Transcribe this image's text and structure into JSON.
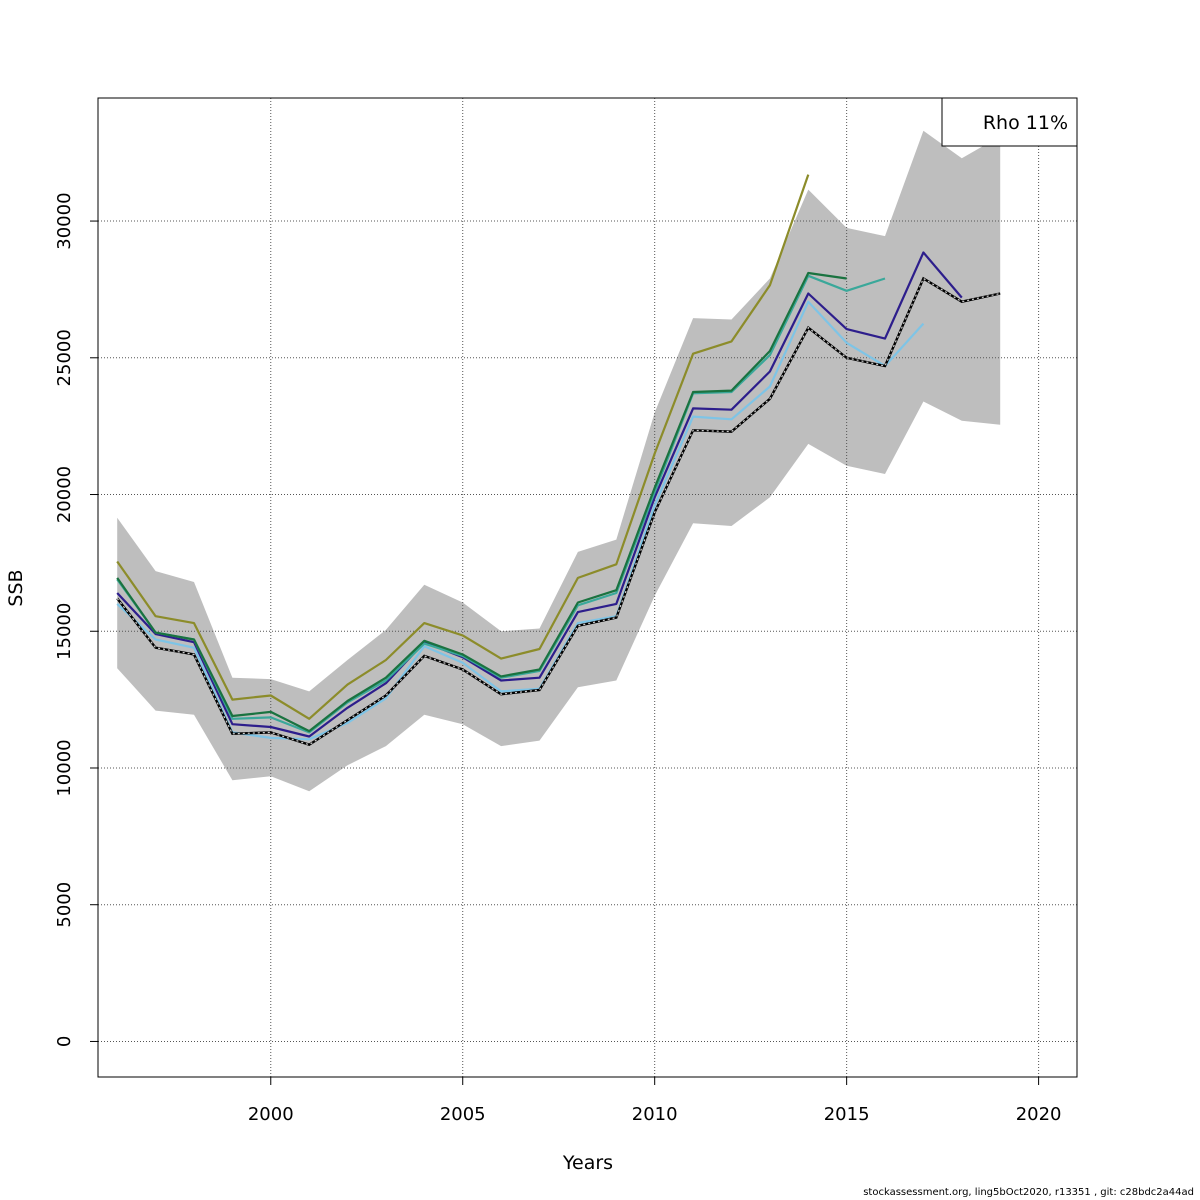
{
  "chart_data": {
    "type": "line",
    "xlabel": "Years",
    "ylabel": "SSB",
    "xlim": [
      1995.5,
      2021.0
    ],
    "ylim": [
      -1300,
      34500
    ],
    "x_ticks": [
      2000,
      2005,
      2010,
      2015,
      2020
    ],
    "y_ticks": [
      0,
      5000,
      10000,
      15000,
      20000,
      25000,
      30000
    ],
    "grid": true,
    "legend": {
      "position": "top-right",
      "text": "Rho 11%"
    },
    "confidence_band": {
      "x": [
        1996,
        1997,
        1998,
        1999,
        2000,
        2001,
        2002,
        2003,
        2004,
        2005,
        2006,
        2007,
        2008,
        2009,
        2010,
        2011,
        2012,
        2013,
        2014,
        2015,
        2016,
        2017,
        2018,
        2019
      ],
      "upper": [
        19150,
        17200,
        16800,
        13300,
        13250,
        12800,
        13950,
        15050,
        16700,
        16050,
        15000,
        15100,
        17900,
        18350,
        23000,
        26450,
        26400,
        27900,
        31150,
        29750,
        29450,
        33300,
        32300,
        33100
      ],
      "lower": [
        13650,
        12100,
        11950,
        9550,
        9700,
        9150,
        10100,
        10800,
        11950,
        11600,
        10800,
        11000,
        12950,
        13200,
        16300,
        18950,
        18850,
        19900,
        21850,
        21050,
        20750,
        23400,
        22700,
        22550
      ]
    },
    "series": [
      {
        "color": "#000000",
        "dashed": true,
        "x": [
          1996,
          1997,
          1998,
          1999,
          2000,
          2001,
          2002,
          2003,
          2004,
          2005,
          2006,
          2007,
          2008,
          2009,
          2010,
          2011,
          2012,
          2013,
          2014,
          2015,
          2016,
          2017,
          2018,
          2019
        ],
        "values": [
          16200,
          14400,
          14150,
          11250,
          11300,
          10850,
          11750,
          12650,
          14100,
          13600,
          12700,
          12850,
          15200,
          15500,
          19350,
          22350,
          22300,
          23500,
          26100,
          25000,
          24700,
          27900,
          27050,
          27350
        ]
      },
      {
        "color": "#2d1e8c",
        "x": [
          1996,
          1997,
          1998,
          1999,
          2000,
          2001,
          2002,
          2003,
          2004,
          2005,
          2006,
          2007,
          2008,
          2009,
          2010,
          2011,
          2012,
          2013,
          2014,
          2015,
          2016,
          2017,
          2018
        ],
        "values": [
          16400,
          14900,
          14600,
          11600,
          11500,
          11150,
          12200,
          13100,
          14600,
          14050,
          13200,
          13300,
          15700,
          16000,
          19900,
          23150,
          23100,
          24500,
          27350,
          26050,
          25700,
          28850,
          27200
        ]
      },
      {
        "color": "#7ec4e6",
        "x": [
          1996,
          1997,
          1998,
          1999,
          2000,
          2001,
          2002,
          2003,
          2004,
          2005,
          2006,
          2007,
          2008,
          2009,
          2010,
          2011,
          2012,
          2013,
          2014,
          2015,
          2016,
          2017
        ],
        "values": [
          16000,
          14700,
          14400,
          11300,
          11100,
          11050,
          11650,
          12550,
          14450,
          13850,
          12800,
          12900,
          15300,
          15550,
          19600,
          22850,
          22750,
          23950,
          27050,
          25550,
          24700,
          26250
        ]
      },
      {
        "color": "#3aa89a",
        "x": [
          1996,
          1997,
          1998,
          1999,
          2000,
          2001,
          2002,
          2003,
          2004,
          2005,
          2006,
          2007,
          2008,
          2009,
          2010,
          2011,
          2012,
          2013,
          2014,
          2015,
          2016
        ],
        "values": [
          16900,
          14950,
          14700,
          11800,
          11850,
          11300,
          12400,
          13200,
          14550,
          14100,
          13300,
          13550,
          15950,
          16400,
          20100,
          23700,
          23750,
          25100,
          28000,
          27450,
          27900
        ]
      },
      {
        "color": "#1a7340",
        "x": [
          1996,
          1997,
          1998,
          1999,
          2000,
          2001,
          2002,
          2003,
          2004,
          2005,
          2006,
          2007,
          2008,
          2009,
          2010,
          2011,
          2012,
          2013,
          2014,
          2015
        ],
        "values": [
          16950,
          14950,
          14700,
          11900,
          12050,
          11350,
          12450,
          13300,
          14650,
          14150,
          13350,
          13600,
          16050,
          16500,
          20250,
          23750,
          23800,
          25250,
          28100,
          27900
        ]
      },
      {
        "color": "#8c8c2a",
        "x": [
          1996,
          1997,
          1998,
          1999,
          2000,
          2001,
          2002,
          2003,
          2004,
          2005,
          2006,
          2007,
          2008,
          2009,
          2010,
          2011,
          2012,
          2013,
          2014
        ],
        "values": [
          17550,
          15550,
          15300,
          12500,
          12650,
          11800,
          13050,
          13950,
          15300,
          14850,
          14000,
          14350,
          16950,
          17450,
          21500,
          25150,
          25600,
          27650,
          31700
        ]
      }
    ]
  },
  "footer": "stockassessment.org, ling5bOct2020, r13351 , git: c28bdc2a44ad"
}
